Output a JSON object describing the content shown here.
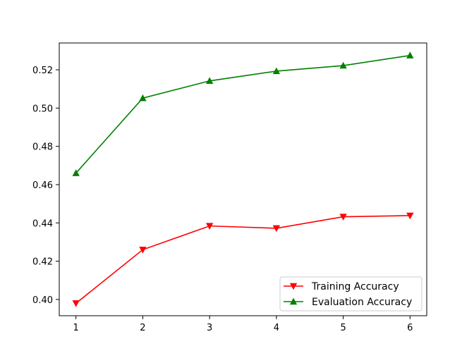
{
  "chart_data": {
    "type": "line",
    "title": "",
    "xlabel": "",
    "ylabel": "",
    "x": [
      1,
      2,
      3,
      4,
      5,
      6
    ],
    "xlim": [
      0.75,
      6.25
    ],
    "ylim": [
      0.3915,
      0.534
    ],
    "xticks": [
      1,
      2,
      3,
      4,
      5,
      6
    ],
    "yticks": [
      0.4,
      0.42,
      0.44,
      0.46,
      0.48,
      0.5,
      0.52
    ],
    "ytick_labels": [
      "0.40",
      "0.42",
      "0.44",
      "0.46",
      "0.48",
      "0.50",
      "0.52"
    ],
    "grid": false,
    "legend_position": "lower-right",
    "series": [
      {
        "name": "Training Accuracy",
        "color": "#ff0000",
        "marker": "triangle-down",
        "values": [
          0.398,
          0.426,
          0.4384,
          0.4372,
          0.4432,
          0.4438
        ]
      },
      {
        "name": "Evaluation Accuracy",
        "color": "#008000",
        "marker": "triangle-up",
        "values": [
          0.466,
          0.5052,
          0.5142,
          0.5193,
          0.5222,
          0.5275
        ]
      }
    ]
  }
}
